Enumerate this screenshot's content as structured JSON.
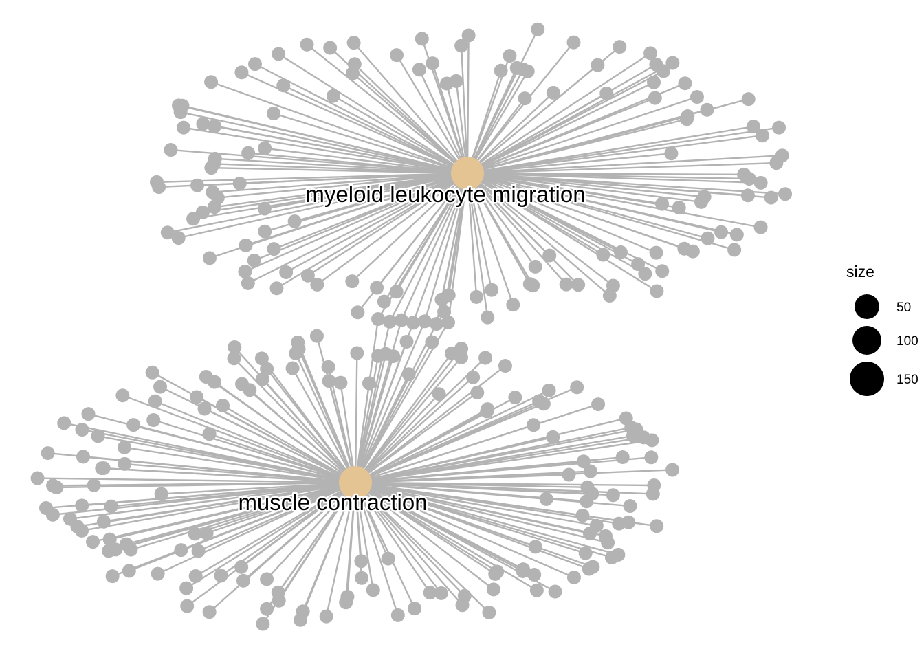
{
  "network": {
    "edge_color": "#b3b3b3",
    "leaf_color": "#b3b3b3",
    "hub_color": "#e5c494",
    "hubs": [
      {
        "id": "myeloid",
        "label": "myeloid leukocyte migration",
        "leaf_count": 130
      },
      {
        "id": "muscle",
        "label": "muscle contraction",
        "leaf_count": 160
      }
    ],
    "shared_gene_count": 7
  },
  "legend": {
    "title": "size",
    "items": [
      {
        "label": "50",
        "value": 50
      },
      {
        "label": "100",
        "value": 100
      },
      {
        "label": "150",
        "value": 150
      }
    ]
  }
}
